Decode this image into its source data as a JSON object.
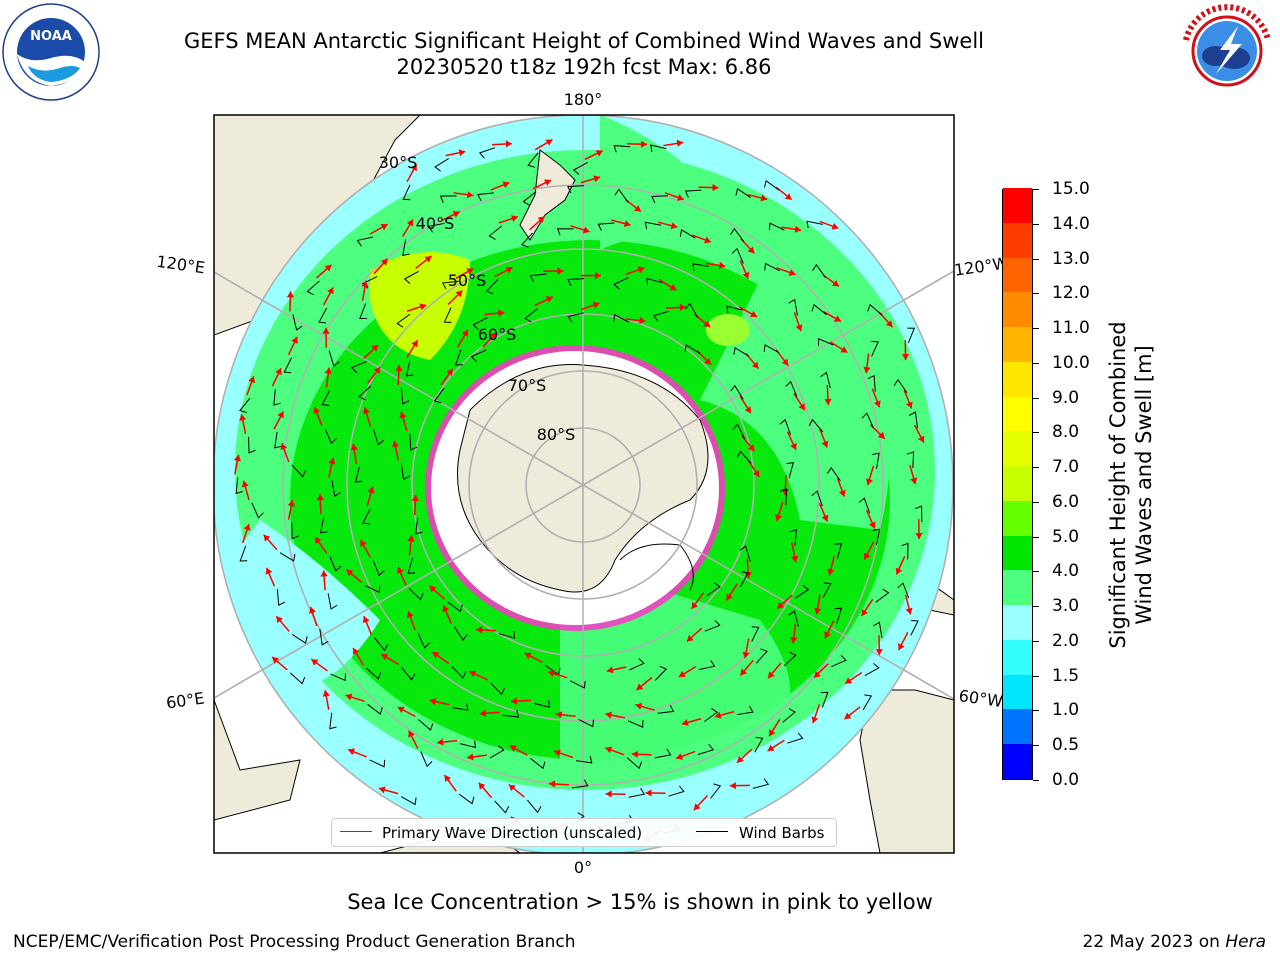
{
  "title": {
    "line1": "GEFS MEAN Antarctic Significant Height of Combined Wind Waves and Swell",
    "line2": "20230520 t18z 192h fcst   Max: 6.86"
  },
  "map": {
    "longitude_labels": [
      "180°",
      "120°E",
      "120°W",
      "60°E",
      "60°W",
      "0°"
    ],
    "latitude_labels": [
      "30°S",
      "40°S",
      "50°S",
      "60°S",
      "70°S",
      "80°S"
    ],
    "colors": {
      "land": "#efebdb",
      "ocean_low": "#99ffff",
      "ocean_mid": "#4dff7f",
      "ocean_high": "#00e600",
      "ocean_peak": "#c8ff00",
      "ice_edge": "#ff33cc",
      "arrow": "#ff0000",
      "barb": "#000000"
    }
  },
  "legend": {
    "primary_wave": "Primary Wave Direction (unscaled)",
    "wind_barbs": "Wind Barbs"
  },
  "colorbar": {
    "title_line1": "Significant Height of Combined",
    "title_line2": "Wind Waves and Swell [m]",
    "ticks": [
      "0.0",
      "0.5",
      "1.0",
      "1.5",
      "2.0",
      "3.0",
      "4.0",
      "5.0",
      "6.0",
      "7.0",
      "8.0",
      "9.0",
      "10.0",
      "11.0",
      "12.0",
      "13.0",
      "14.0",
      "15.0"
    ],
    "colors": [
      "#0000ff",
      "#0073ff",
      "#00e6ff",
      "#33ffff",
      "#99ffff",
      "#4dff7f",
      "#00e600",
      "#66ff00",
      "#c8ff00",
      "#e6ff00",
      "#ffff00",
      "#ffe600",
      "#ffb400",
      "#ff8c00",
      "#ff6400",
      "#ff3c00",
      "#ff0000"
    ]
  },
  "caption": "Sea Ice Concentration > 15% is shown in pink to yellow",
  "footer": {
    "left": "NCEP/EMC/Verification Post Processing Product Generation Branch",
    "right_date": "22 May 2023 on",
    "right_host": "Hera"
  }
}
